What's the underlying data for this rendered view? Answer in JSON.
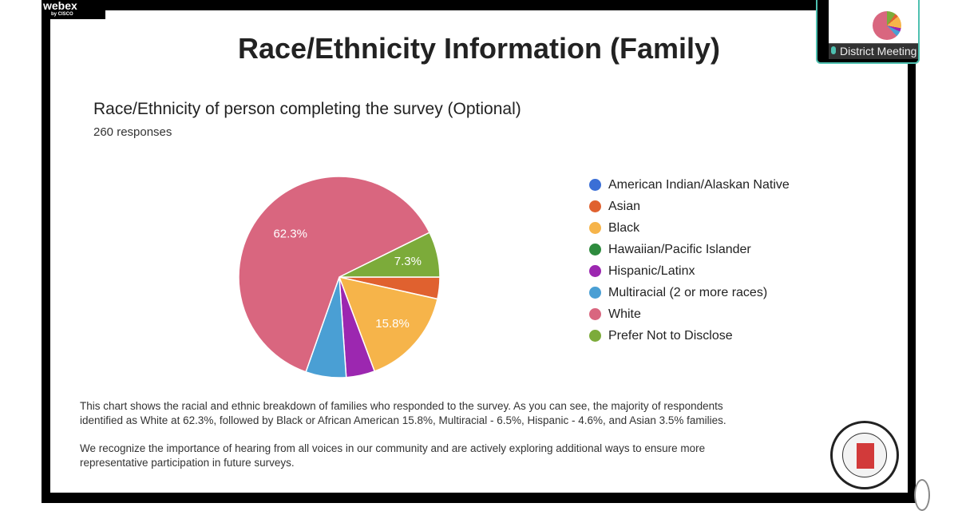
{
  "app": {
    "brand": "webex",
    "brand_sub": "by CISCO",
    "thumbnail_label": "District Meeting"
  },
  "slide": {
    "title": "Race/Ethnicity Information (Family)",
    "paragraph1_line1": "This chart shows the racial and ethnic breakdown of families who responded to the survey. As you can see, the majority of respondents",
    "paragraph1_line2": "identified as White at 62.3%, followed by Black or African American 15.8%, Multiracial - 6.5%, Hispanic - 4.6%, and Asian 3.5% families.",
    "paragraph2_line1": "We recognize the importance of hearing from all voices in our community and are actively exploring additional ways to ensure more",
    "paragraph2_line2": "representative participation in future surveys.",
    "logo_text": "THE SCHOOL DISTRICT OF SOUTH ORANGE & MAPLEWOOD"
  },
  "chart_data": {
    "type": "pie",
    "title": "Race/Ethnicity of person completing the survey (Optional)",
    "subtitle": "260 responses",
    "legend_position": "right",
    "slices": [
      {
        "label": "American Indian/Alaskan Native",
        "value": 0,
        "color": "#3b6fd6"
      },
      {
        "label": "Asian",
        "value": 3.5,
        "color": "#e0612f"
      },
      {
        "label": "Black",
        "value": 15.8,
        "color": "#f6b44a",
        "data_label": "15.8%"
      },
      {
        "label": "Hawaiian/Pacific Islander",
        "value": 0,
        "color": "#2e8b3e"
      },
      {
        "label": "Hispanic/Latinx",
        "value": 4.6,
        "color": "#9c27b0"
      },
      {
        "label": "Multiracial (2 or more races)",
        "value": 6.5,
        "color": "#4a9fd4"
      },
      {
        "label": "White",
        "value": 62.3,
        "color": "#d9667f",
        "data_label": "62.3%"
      },
      {
        "label": "Prefer Not to Disclose",
        "value": 7.3,
        "color": "#7cab3a",
        "data_label": "7.3%"
      }
    ]
  }
}
